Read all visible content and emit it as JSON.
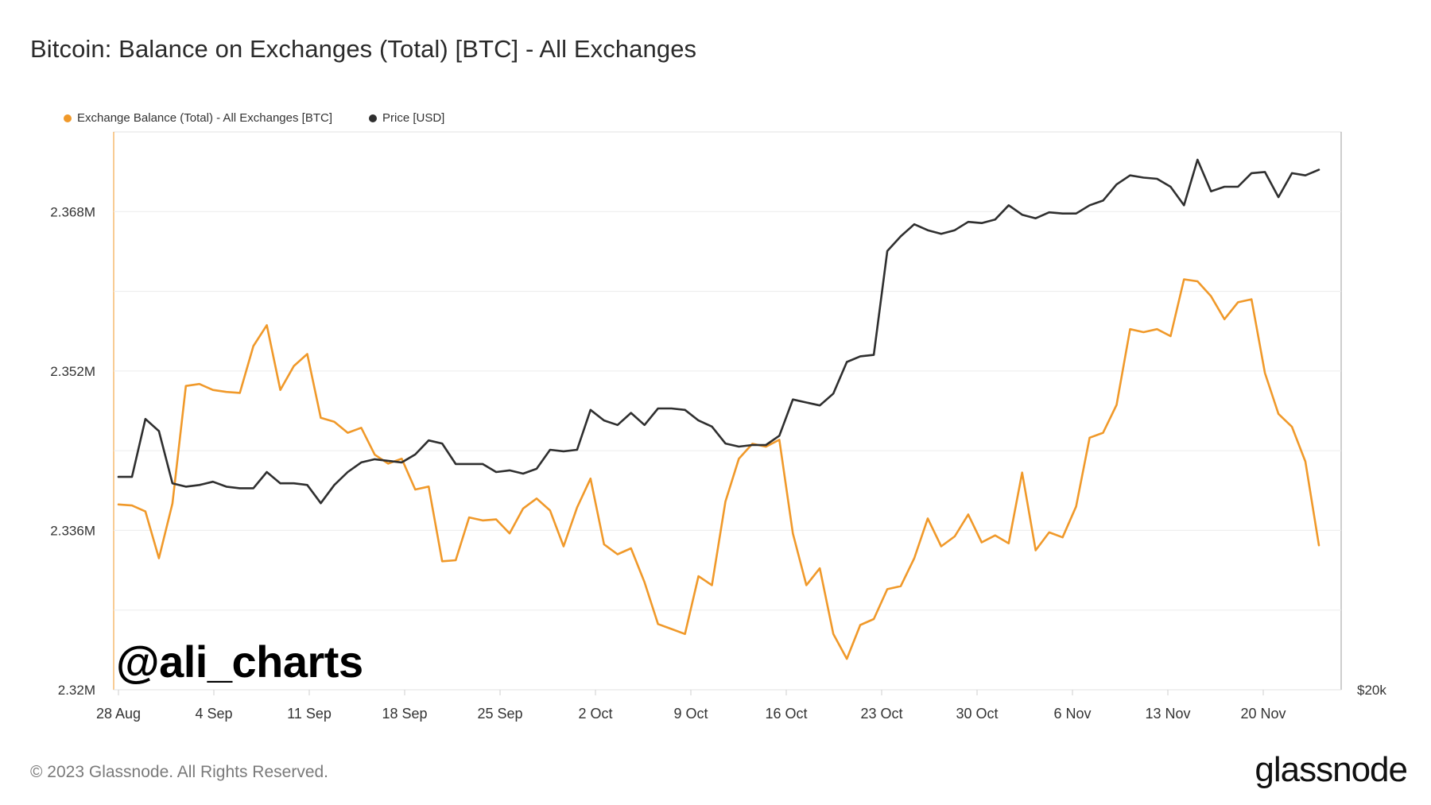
{
  "title": "Bitcoin: Balance on Exchanges (Total) [BTC] - All Exchanges",
  "legend": [
    {
      "label": "Exchange Balance (Total) - All Exchanges [BTC]",
      "color": "#f0992a"
    },
    {
      "label": "Price [USD]",
      "color": "#2f2f2f"
    }
  ],
  "watermark": "@ali_charts",
  "footer": "© 2023 Glassnode. All Rights Reserved.",
  "brand": "glassnode",
  "chart_data": {
    "type": "line",
    "title": "Bitcoin: Balance on Exchanges (Total) [BTC] - All Exchanges",
    "x_ticks": [
      "28 Aug",
      "4 Sep",
      "11 Sep",
      "18 Sep",
      "25 Sep",
      "2 Oct",
      "9 Oct",
      "16 Oct",
      "23 Oct",
      "30 Oct",
      "6 Nov",
      "13 Nov",
      "20 Nov"
    ],
    "x_start": "2023-08-28",
    "y_left": {
      "ticks": [
        "2.32M",
        "2.336M",
        "2.352M",
        "2.368M"
      ],
      "tick_values": [
        2320000,
        2336000,
        2352000,
        2368000
      ],
      "ylim": [
        2320000,
        2376000
      ]
    },
    "y_right": {
      "ticks": [
        "$20k"
      ]
    },
    "grid": true,
    "legend_position": "top-left",
    "series": [
      {
        "name": "Exchange Balance (Total) - All Exchanges [BTC]",
        "axis": "left",
        "color": "#f0992a",
        "values": [
          2338600,
          2338500,
          2337900,
          2333200,
          2338700,
          2350500,
          2350700,
          2350100,
          2349900,
          2349800,
          2354500,
          2356600,
          2350100,
          2352500,
          2353700,
          2347300,
          2346900,
          2345800,
          2346300,
          2343600,
          2342700,
          2343200,
          2340100,
          2340400,
          2332900,
          2333000,
          2337300,
          2337000,
          2337100,
          2335700,
          2338200,
          2339200,
          2338000,
          2334400,
          2338300,
          2341200,
          2334600,
          2333600,
          2334200,
          2330800,
          2326600,
          2326100,
          2325600,
          2331400,
          2330500,
          2338900,
          2343200,
          2344700,
          2344400,
          2345100,
          2335700,
          2330500,
          2332200,
          2325600,
          2323100,
          2326500,
          2327100,
          2330100,
          2330400,
          2333200,
          2337200,
          2334400,
          2335400,
          2337600,
          2334800,
          2335500,
          2334700,
          2341800,
          2334000,
          2335800,
          2335300,
          2338400,
          2345300,
          2345800,
          2348600,
          2356200,
          2355900,
          2356200,
          2355500,
          2361200,
          2361000,
          2359500,
          2357200,
          2358900,
          2359200,
          2351800,
          2347700,
          2346400,
          2342900,
          2334500
        ]
      },
      {
        "name": "Price [USD]",
        "axis": "right",
        "color": "#2f2f2f",
        "values": [
          25800,
          25800,
          27650,
          27250,
          25600,
          25500,
          25550,
          25650,
          25500,
          25450,
          25450,
          25950,
          25600,
          25600,
          25550,
          25000,
          25550,
          25950,
          26250,
          26350,
          26300,
          26250,
          26500,
          26950,
          26850,
          26200,
          26200,
          26200,
          25950,
          26000,
          25900,
          26050,
          26650,
          26600,
          26650,
          27950,
          27600,
          27450,
          27850,
          27450,
          28000,
          28000,
          27950,
          27600,
          27400,
          26850,
          26750,
          26800,
          26800,
          27100,
          28300,
          28200,
          28100,
          28500,
          29600,
          29800,
          29850,
          33800,
          34400,
          34900,
          34650,
          34500,
          34650,
          35000,
          34950,
          35100,
          35700,
          35300,
          35150,
          35400,
          35350,
          35350,
          35700,
          35900,
          36600,
          37000,
          36900,
          36850,
          36500,
          35700,
          37700,
          36300,
          36500,
          36500,
          37100,
          37150,
          36050,
          37100,
          37000,
          37250
        ]
      }
    ]
  }
}
